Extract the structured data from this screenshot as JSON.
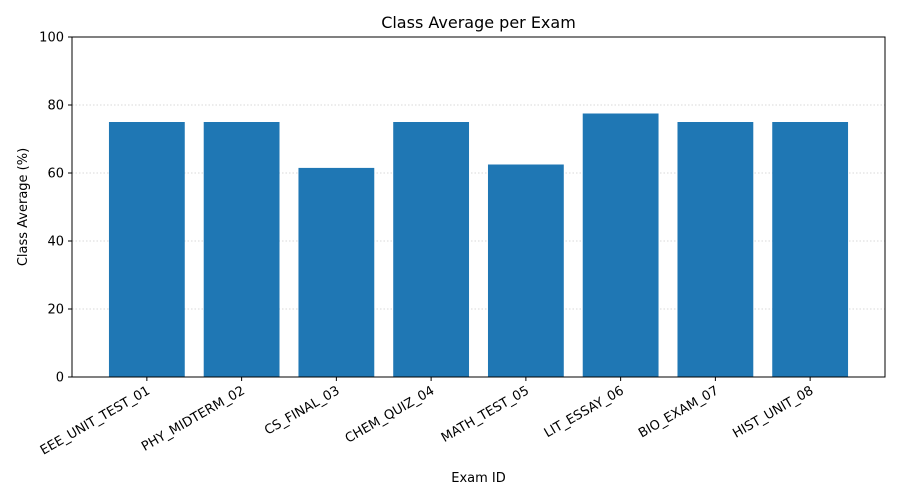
{
  "chart_data": {
    "type": "bar",
    "title": "Class Average per Exam",
    "xlabel": "Exam ID",
    "ylabel": "Class Average (%)",
    "categories": [
      "EEE_UNIT_TEST_01",
      "PHY_MIDTERM_02",
      "CS_FINAL_03",
      "CHEM_QUIZ_04",
      "MATH_TEST_05",
      "LIT_ESSAY_06",
      "BIO_EXAM_07",
      "HIST_UNIT_08"
    ],
    "values": [
      75.0,
      75.0,
      61.5,
      75.0,
      62.5,
      77.5,
      75.0,
      75.0
    ],
    "ylim": [
      0,
      100
    ],
    "yticks": [
      0,
      20,
      40,
      60,
      80,
      100
    ],
    "grid": "y-dotted",
    "legend": "none",
    "bar_color": "#1f77b4",
    "grid_color": "#cccccc"
  }
}
